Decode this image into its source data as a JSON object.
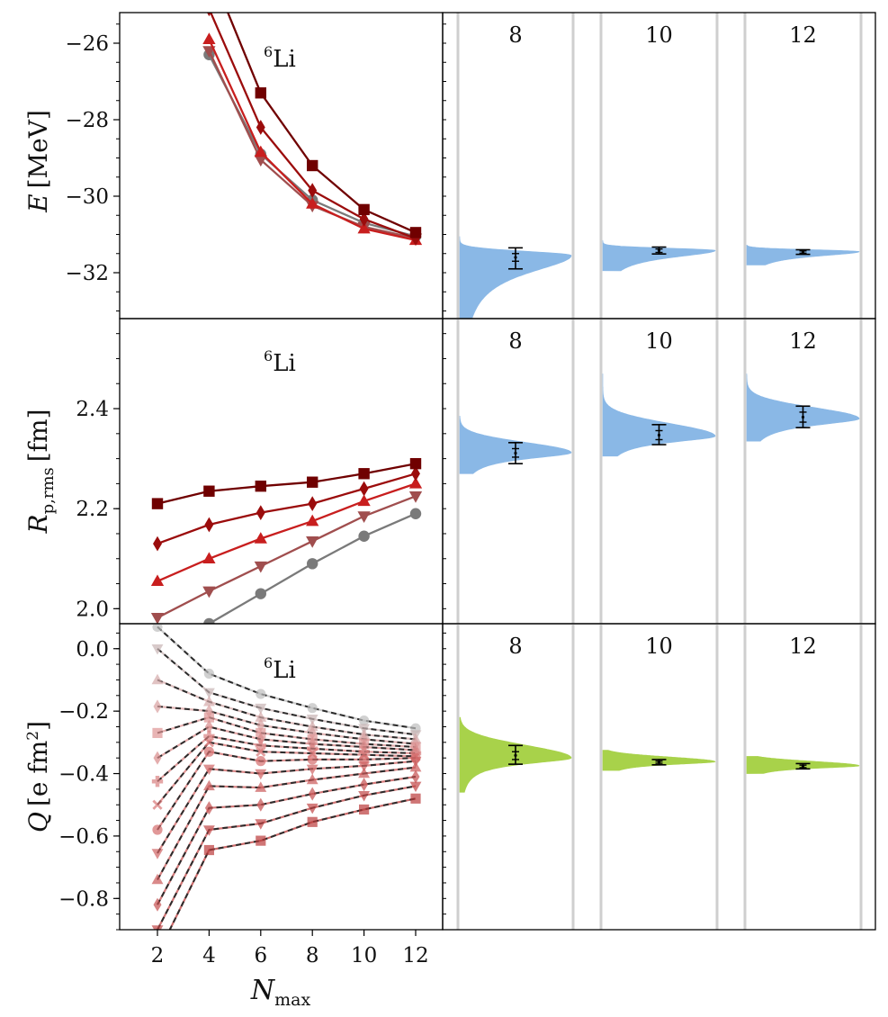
{
  "chart_data": [
    {
      "type": "line",
      "panel": "energy",
      "nucleus": {
        "mass": "6",
        "symbol": "Li"
      },
      "ylabel": {
        "main": "E",
        "unit": "[MeV]"
      },
      "ylim": [
        -33.2,
        -25.2
      ],
      "yticks": [
        -26,
        -28,
        -30,
        -32
      ],
      "ytick_labels": [
        "−26",
        "−28",
        "−30",
        "−32"
      ],
      "x": [
        2,
        4,
        6,
        8,
        10,
        12
      ],
      "series": [
        {
          "color": "#7a7a7a",
          "marker": "circle",
          "values": [
            null,
            -26.3,
            -28.9,
            -30.1,
            -30.7,
            -31.05
          ]
        },
        {
          "color": "#a04e4e",
          "marker": "triangle-down",
          "values": [
            null,
            -26.2,
            -29.05,
            -30.25,
            -30.8,
            -31.1
          ]
        },
        {
          "color": "#c81e1e",
          "marker": "triangle-up",
          "values": [
            null,
            -25.9,
            -28.85,
            -30.2,
            -30.85,
            -31.15
          ]
        },
        {
          "color": "#9b0c0c",
          "marker": "diamond",
          "values": [
            null,
            -25.1,
            -28.2,
            -29.85,
            -30.6,
            -31.1
          ]
        },
        {
          "color": "#700000",
          "marker": "square",
          "values": [
            null,
            -24.0,
            -27.3,
            -29.2,
            -30.35,
            -30.95
          ]
        }
      ],
      "distributions": {
        "color": "#8ab8e6",
        "labels": [
          "8",
          "10",
          "12"
        ],
        "items": [
          {
            "mode": -31.55,
            "sd_low": 0.45,
            "sd_high": 0.11,
            "tail_low": -33.3,
            "tail_high": -31.05,
            "ci_outer": [
              -31.35,
              -31.9
            ],
            "ci_inner": [
              -31.5,
              -31.7
            ],
            "center": -31.6
          },
          {
            "mode": -31.42,
            "sd_low": 0.18,
            "sd_high": 0.06,
            "tail_low": -31.95,
            "tail_high": -31.15,
            "ci_outer": [
              -31.33,
              -31.51
            ],
            "ci_inner": [
              -31.38,
              -31.47
            ],
            "center": -31.42
          },
          {
            "mode": -31.45,
            "sd_low": 0.12,
            "sd_high": 0.05,
            "tail_low": -31.8,
            "tail_high": -31.28,
            "ci_outer": [
              -31.4,
              -31.52
            ],
            "ci_inner": [
              -31.43,
              -31.49
            ],
            "center": -31.46
          }
        ]
      }
    },
    {
      "type": "line",
      "panel": "radius",
      "nucleus": {
        "mass": "6",
        "symbol": "Li"
      },
      "ylabel": {
        "main": "R",
        "sub": "p,rms",
        "unit": "[fm]"
      },
      "ylim": [
        1.97,
        2.58
      ],
      "yticks": [
        2.0,
        2.2,
        2.4
      ],
      "ytick_labels": [
        "2.0",
        "2.2",
        "2.4"
      ],
      "x": [
        2,
        4,
        6,
        8,
        10,
        12
      ],
      "series": [
        {
          "color": "#7a7a7a",
          "marker": "circle",
          "values": [
            null,
            1.97,
            2.03,
            2.09,
            2.145,
            2.19
          ]
        },
        {
          "color": "#a04e4e",
          "marker": "triangle-down",
          "values": [
            1.982,
            2.035,
            2.085,
            2.135,
            2.185,
            2.225
          ]
        },
        {
          "color": "#c81e1e",
          "marker": "triangle-up",
          "values": [
            2.055,
            2.1,
            2.14,
            2.175,
            2.215,
            2.25
          ]
        },
        {
          "color": "#9b0c0c",
          "marker": "diamond",
          "values": [
            2.13,
            2.168,
            2.192,
            2.21,
            2.24,
            2.27
          ]
        },
        {
          "color": "#700000",
          "marker": "square",
          "values": [
            2.21,
            2.235,
            2.245,
            2.253,
            2.27,
            2.29
          ]
        }
      ],
      "distributions": {
        "color": "#8ab8e6",
        "labels": [
          "8",
          "10",
          "12"
        ],
        "items": [
          {
            "mode": 2.312,
            "sd_low": 0.012,
            "sd_high": 0.02,
            "tail_low": 2.27,
            "tail_high": 2.385,
            "ci_outer": [
              2.29,
              2.332
            ],
            "ci_inner": [
              2.303,
              2.32
            ],
            "center": 2.311
          },
          {
            "mode": 2.345,
            "sd_low": 0.012,
            "sd_high": 0.025,
            "tail_low": 2.305,
            "tail_high": 2.47,
            "ci_outer": [
              2.328,
              2.368
            ],
            "ci_inner": [
              2.338,
              2.356
            ],
            "center": 2.347
          },
          {
            "mode": 2.38,
            "sd_low": 0.013,
            "sd_high": 0.022,
            "tail_low": 2.335,
            "tail_high": 2.47,
            "ci_outer": [
              2.362,
              2.405
            ],
            "ci_inner": [
              2.373,
              2.393
            ],
            "center": 2.383
          }
        ]
      }
    },
    {
      "type": "line",
      "panel": "quadrupole",
      "nucleus": {
        "mass": "6",
        "symbol": "Li"
      },
      "ylabel": {
        "main": "Q",
        "unit": "[e fm",
        "unit_sup": "2",
        "unit_end": "]"
      },
      "ylim": [
        -0.9,
        0.08
      ],
      "yticks": [
        0.0,
        -0.2,
        -0.4,
        -0.6,
        -0.8
      ],
      "ytick_labels": [
        "0.0",
        "−0.2",
        "−0.4",
        "−0.6",
        "−0.8"
      ],
      "xlabel": {
        "main": "N",
        "sub": "max"
      },
      "xticks": [
        2,
        4,
        6,
        8,
        10,
        12
      ],
      "xtick_labels": [
        "2",
        "4",
        "6",
        "8",
        "10",
        "12"
      ],
      "x": [
        2,
        4,
        6,
        8,
        10,
        12
      ],
      "series": [
        {
          "color": "#bdbdbd",
          "marker": "circle",
          "values": [
            0.07,
            -0.08,
            -0.145,
            -0.19,
            -0.23,
            -0.255
          ]
        },
        {
          "color": "#c8b4b4",
          "marker": "triangle-down",
          "values": [
            0.0,
            -0.14,
            -0.19,
            -0.225,
            -0.255,
            -0.275
          ]
        },
        {
          "color": "#d4aaaa",
          "marker": "triangle-up",
          "values": [
            -0.1,
            -0.17,
            -0.22,
            -0.25,
            -0.275,
            -0.29
          ]
        },
        {
          "color": "#d99f9f",
          "marker": "diamond",
          "values": [
            -0.185,
            -0.2,
            -0.245,
            -0.27,
            -0.29,
            -0.305
          ]
        },
        {
          "color": "#de9494",
          "marker": "square",
          "values": [
            -0.27,
            -0.22,
            -0.27,
            -0.29,
            -0.305,
            -0.315
          ]
        },
        {
          "color": "#d98a8a",
          "marker": "diamond",
          "values": [
            -0.35,
            -0.25,
            -0.29,
            -0.305,
            -0.315,
            -0.325
          ]
        },
        {
          "color": "#d98080",
          "marker": "plus",
          "values": [
            -0.425,
            -0.28,
            -0.31,
            -0.32,
            -0.33,
            -0.335
          ]
        },
        {
          "color": "#d97676",
          "marker": "cross",
          "values": [
            -0.5,
            -0.3,
            -0.33,
            -0.335,
            -0.34,
            -0.345
          ]
        },
        {
          "color": "#d46c6c",
          "marker": "circle",
          "values": [
            -0.58,
            -0.33,
            -0.36,
            -0.355,
            -0.355,
            -0.35
          ]
        },
        {
          "color": "#cf6262",
          "marker": "triangle-down",
          "values": [
            -0.655,
            -0.385,
            -0.4,
            -0.385,
            -0.375,
            -0.36
          ]
        },
        {
          "color": "#ca5858",
          "marker": "triangle-up",
          "values": [
            -0.74,
            -0.44,
            -0.445,
            -0.42,
            -0.4,
            -0.38
          ]
        },
        {
          "color": "#c54e4e",
          "marker": "diamond",
          "values": [
            -0.82,
            -0.51,
            -0.5,
            -0.465,
            -0.435,
            -0.41
          ]
        },
        {
          "color": "#c04444",
          "marker": "triangle-down",
          "values": [
            -0.9,
            -0.58,
            -0.56,
            -0.51,
            -0.47,
            -0.44
          ]
        },
        {
          "color": "#bb3a3a",
          "marker": "square",
          "values": [
            -0.98,
            -0.645,
            -0.615,
            -0.555,
            -0.515,
            -0.48
          ]
        }
      ],
      "distributions": {
        "color": "#a8d24a",
        "labels": [
          "8",
          "10",
          "12"
        ],
        "items": [
          {
            "mode": -0.35,
            "sd_low": 0.018,
            "sd_high": 0.04,
            "tail_low": -0.46,
            "tail_high": -0.22,
            "ci_outer": [
              -0.31,
              -0.37
            ],
            "ci_inner": [
              -0.33,
              -0.355
            ],
            "center": -0.342
          },
          {
            "mode": -0.362,
            "sd_low": 0.009,
            "sd_high": 0.015,
            "tail_low": -0.39,
            "tail_high": -0.325,
            "ci_outer": [
              -0.355,
              -0.372
            ],
            "ci_inner": [
              -0.36,
              -0.367
            ],
            "center": -0.364
          },
          {
            "mode": -0.375,
            "sd_low": 0.008,
            "sd_high": 0.014,
            "tail_low": -0.4,
            "tail_high": -0.345,
            "ci_outer": [
              -0.368,
              -0.385
            ],
            "ci_inner": [
              -0.373,
              -0.381
            ],
            "center": -0.377
          }
        ]
      }
    }
  ]
}
